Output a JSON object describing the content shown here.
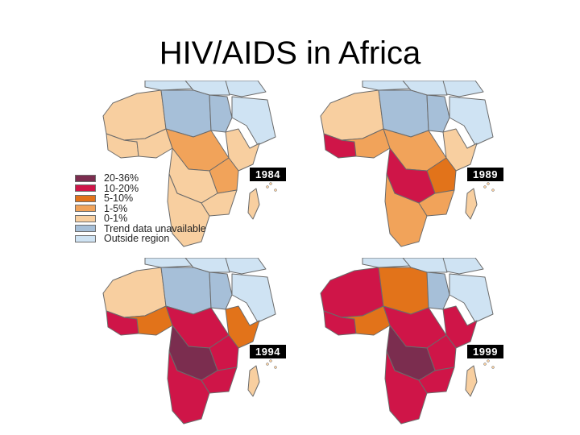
{
  "title": "HIV/AIDS in Africa",
  "colors": {
    "outside": "#cfe3f3",
    "trend_unavailable": "#a6bfd8",
    "p0_1": "#f8cfa0",
    "p1_5": "#f1a35a",
    "p5_10": "#e2731a",
    "p10_20": "#cf1548",
    "p20_36": "#7b2d4f",
    "border": "#6b6b6b"
  },
  "legend": [
    {
      "label": "20-36%",
      "color": "#7b2d4f"
    },
    {
      "label": "10-20%",
      "color": "#cf1548"
    },
    {
      "label": "5-10%",
      "color": "#e2731a"
    },
    {
      "label": "1-5%",
      "color": "#f1a35a"
    },
    {
      "label": "0-1%",
      "color": "#f8cfa0"
    },
    {
      "label": "Trend data unavailable",
      "color": "#a6bfd8"
    },
    {
      "label": "Outside region",
      "color": "#cfe3f3"
    }
  ],
  "maps": [
    {
      "year": "1984",
      "regions": {
        "northwest": "p0_1",
        "north": "trend_unavailable",
        "northeast": "trend_unavailable",
        "horn": "p0_1",
        "westcoast": "p0_1",
        "west": "p0_1",
        "central": "p1_5",
        "east": "p1_5",
        "southcentral": "p0_1",
        "south": "p0_1",
        "southeast": "p0_1"
      }
    },
    {
      "year": "1989",
      "regions": {
        "northwest": "p0_1",
        "north": "trend_unavailable",
        "northeast": "trend_unavailable",
        "horn": "p0_1",
        "westcoast": "p10_20",
        "west": "p1_5",
        "central": "p1_5",
        "east": "p5_10",
        "southcentral": "p10_20",
        "south": "p1_5",
        "southeast": "p1_5"
      }
    },
    {
      "year": "1994",
      "regions": {
        "northwest": "p0_1",
        "north": "trend_unavailable",
        "northeast": "trend_unavailable",
        "horn": "p5_10",
        "westcoast": "p10_20",
        "west": "p5_10",
        "central": "p10_20",
        "east": "p10_20",
        "southcentral": "p20_36",
        "south": "p10_20",
        "southeast": "p10_20"
      }
    },
    {
      "year": "1999",
      "regions": {
        "northwest": "p10_20",
        "north": "p5_10",
        "northeast": "trend_unavailable",
        "horn": "p10_20",
        "westcoast": "p10_20",
        "west": "p5_10",
        "central": "p10_20",
        "east": "p10_20",
        "southcentral": "p20_36",
        "south": "p10_20",
        "southeast": "p10_20"
      }
    }
  ]
}
